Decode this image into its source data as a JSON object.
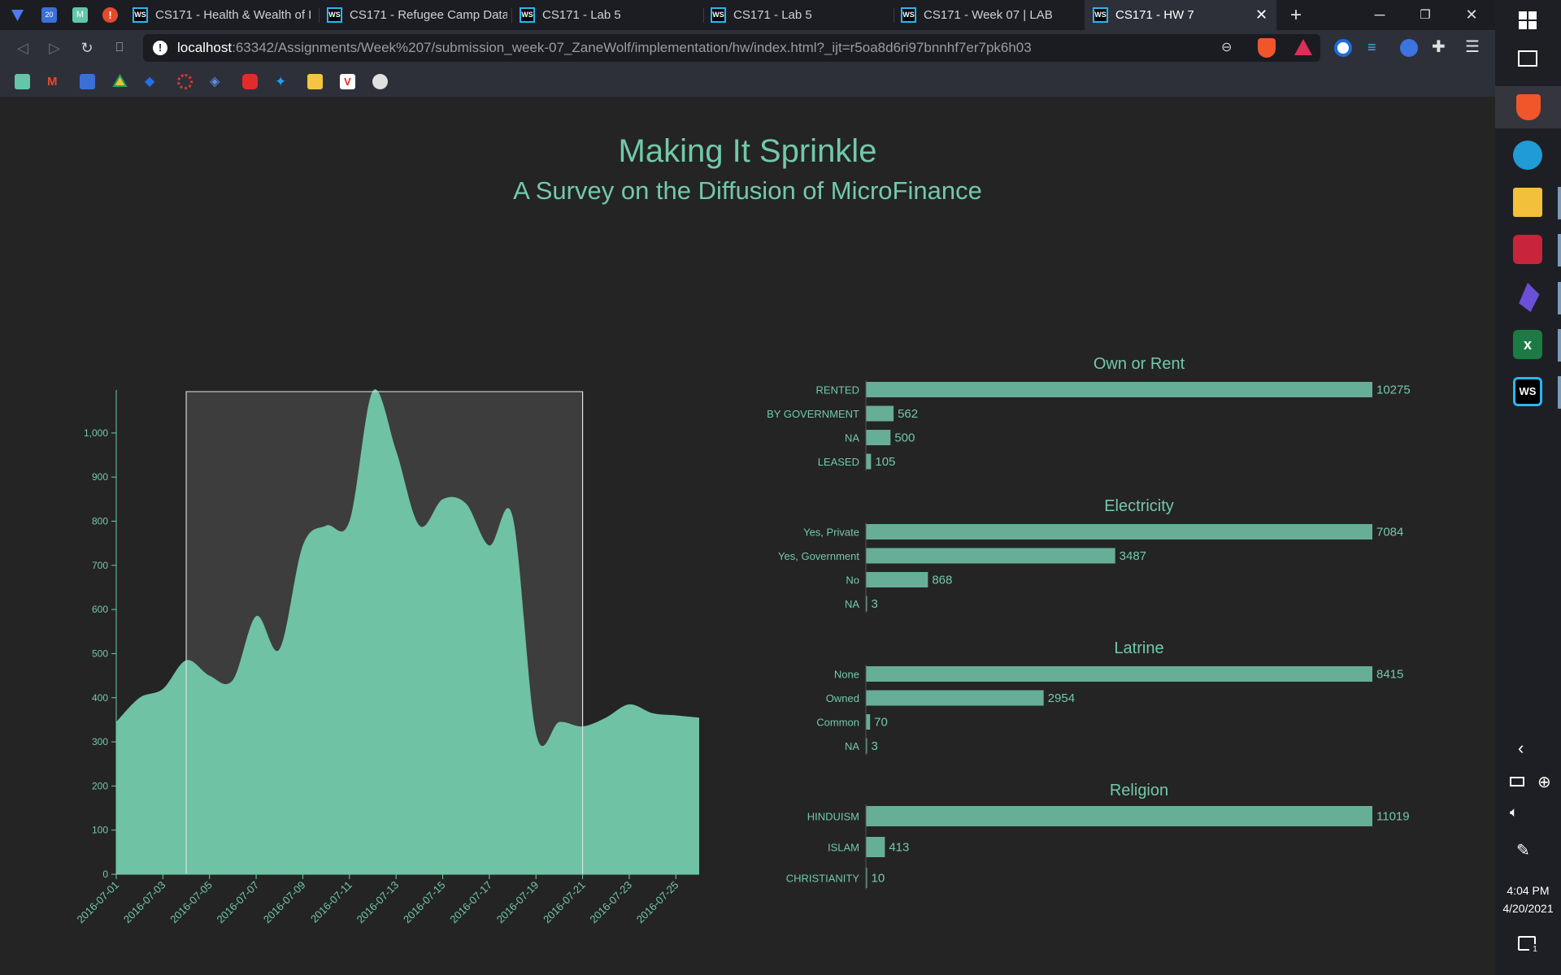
{
  "browser": {
    "tabs": [
      {
        "label": "CS171 - Health & Wealth of I",
        "active": false
      },
      {
        "label": "CS171 - Refugee Camp Data",
        "active": false
      },
      {
        "label": "CS171 - Lab 5",
        "active": false
      },
      {
        "label": "CS171 - Lab 5",
        "active": false
      },
      {
        "label": "CS171 - Week 07 | LAB",
        "active": false
      },
      {
        "label": "CS171 - HW 7",
        "active": true
      }
    ],
    "url_host": "localhost",
    "url_rest": ":63342/Assignments/Week%207/submission_week-07_ZaneWolf/implementation/hw/index.html?_ijt=r5oa8d6ri97bnnhf7er7pk6h03",
    "icons": {
      "back": "back-arrow-icon",
      "forward": "forward-arrow-icon",
      "reload": "reload-icon",
      "bookmark": "bookmark-icon",
      "info": "info-icon"
    }
  },
  "page": {
    "title": "Making It Sprinkle",
    "subtitle": "A Survey on the Diffusion of MicroFinance"
  },
  "chart_data": [
    {
      "type": "area",
      "x": [
        "2016-07-01",
        "2016-07-02",
        "2016-07-03",
        "2016-07-04",
        "2016-07-05",
        "2016-07-06",
        "2016-07-07",
        "2016-07-08",
        "2016-07-09",
        "2016-07-10",
        "2016-07-11",
        "2016-07-12",
        "2016-07-13",
        "2016-07-14",
        "2016-07-15",
        "2016-07-16",
        "2016-07-17",
        "2016-07-18",
        "2016-07-19",
        "2016-07-20",
        "2016-07-21",
        "2016-07-22",
        "2016-07-23",
        "2016-07-24",
        "2016-07-25",
        "2016-07-26"
      ],
      "values": [
        345,
        400,
        420,
        485,
        450,
        440,
        585,
        510,
        745,
        790,
        800,
        1095,
        960,
        790,
        850,
        840,
        745,
        810,
        320,
        345,
        335,
        355,
        385,
        365,
        360,
        355
      ],
      "x_ticks": [
        "2016-07-01",
        "2016-07-03",
        "2016-07-05",
        "2016-07-07",
        "2016-07-09",
        "2016-07-11",
        "2016-07-13",
        "2016-07-15",
        "2016-07-17",
        "2016-07-19",
        "2016-07-21",
        "2016-07-23",
        "2016-07-25"
      ],
      "y_ticks": [
        "0",
        "100",
        "200",
        "300",
        "400",
        "500",
        "600",
        "700",
        "800",
        "900",
        "1,000"
      ],
      "ylim": [
        0,
        1090
      ],
      "brush": [
        "2016-07-04",
        "2016-07-21"
      ],
      "color": "#6fc2a4"
    },
    {
      "type": "bar",
      "title": "Own or Rent",
      "categories": [
        "RENTED",
        "BY GOVERNMENT",
        "NA",
        "LEASED"
      ],
      "values": [
        10275,
        562,
        500,
        105
      ]
    },
    {
      "type": "bar",
      "title": "Electricity",
      "categories": [
        "Yes, Private",
        "Yes, Government",
        "No",
        "NA"
      ],
      "values": [
        7084,
        3487,
        868,
        3
      ]
    },
    {
      "type": "bar",
      "title": "Latrine",
      "categories": [
        "None",
        "Owned",
        "Common",
        "NA"
      ],
      "values": [
        8415,
        2954,
        70,
        3
      ]
    },
    {
      "type": "bar",
      "title": "Religion",
      "categories": [
        "HINDUISM",
        "ISLAM",
        "CHRISTIANITY"
      ],
      "values": [
        11019,
        413,
        10
      ]
    }
  ],
  "colors": {
    "accent": "#72c9a9",
    "bar": "#67ae98",
    "area": "#6fc2a4",
    "brush": "#3d3d3d"
  },
  "taskbar": {
    "time": "4:04 PM",
    "date": "4/20/2021",
    "notification_count": "1"
  }
}
